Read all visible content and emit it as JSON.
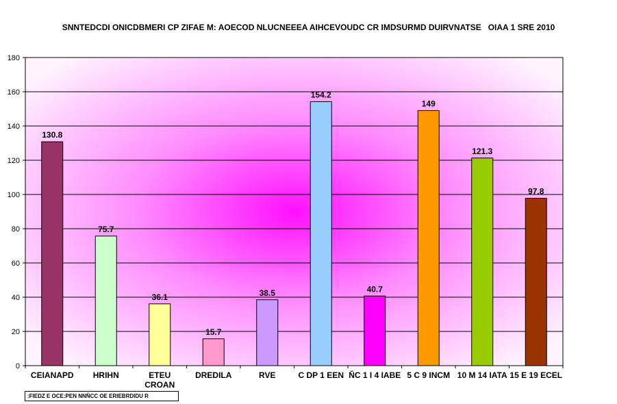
{
  "chart_data": {
    "type": "bar",
    "title": "SNNTEDCDI ONICDBMERI CP ZIFAE M: AOECOD NLUCNEEEA AIHCEVOUDC CR IMDSURMD DUIRVNATSE   OIAA 1 SRE 2010",
    "categories": [
      [
        "CEIANAPD"
      ],
      [
        "HRIHN"
      ],
      [
        "ETEU",
        "CROAN"
      ],
      [
        "DREDILA"
      ],
      [
        "RVE"
      ],
      [
        "C DP 1 EEN"
      ],
      [
        "ŇC 1 I 4 IABE"
      ],
      [
        "5 C 9 INCM"
      ],
      [
        "10 M 14 IATA"
      ],
      [
        "15 E 19 ECEL"
      ]
    ],
    "values": [
      130.8,
      75.7,
      36.1,
      15.7,
      38.5,
      154.2,
      40.7,
      149,
      121.3,
      97.8
    ],
    "data_labels": [
      "130.8",
      "75.7",
      "36.1",
      "15.7",
      "38.5",
      "154.2",
      "40.7",
      "149",
      "121.3",
      "97.8"
    ],
    "colors": [
      "#993366",
      "#CCFFCC",
      "#FFFF99",
      "#FF99CC",
      "#CC99FF",
      "#99CCFF",
      "#FF00FF",
      "#FF9900",
      "#99CC00",
      "#993300"
    ],
    "ylim": [
      0,
      180
    ],
    "yticks": [
      0,
      20,
      40,
      60,
      80,
      100,
      120,
      140,
      160,
      180
    ],
    "grid": true,
    "legend": "none",
    "xlabel": "",
    "ylabel": "",
    "background": "radial magenta-to-white gradient"
  },
  "footnote": ":FIEDZ E OCE:PEN NNŇCC OE ERIEBRDIDU R"
}
